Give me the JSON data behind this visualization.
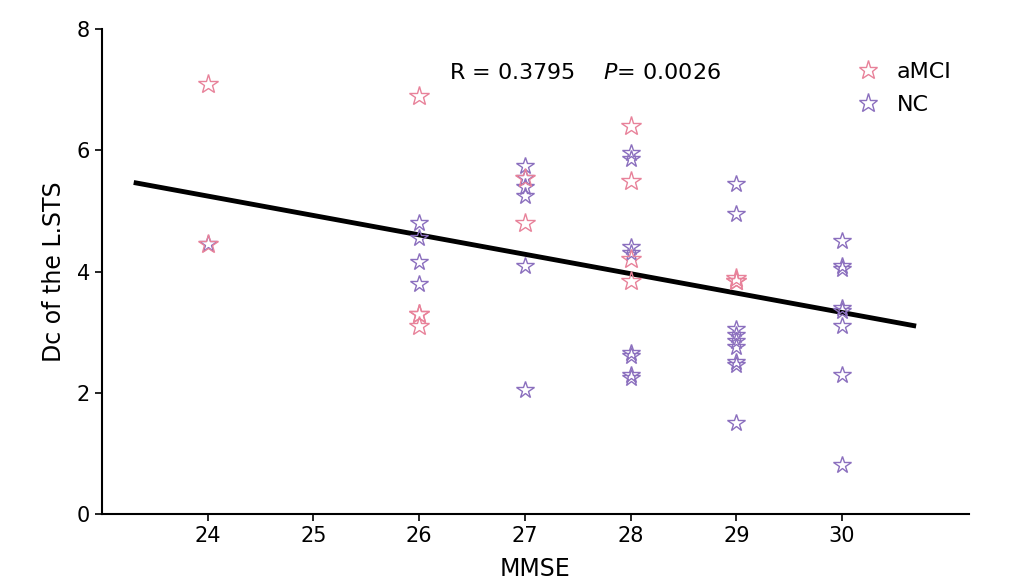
{
  "amci_x": [
    24,
    24,
    26,
    26,
    26,
    26,
    27,
    27,
    28,
    28,
    28,
    28,
    29,
    29,
    29
  ],
  "amci_y": [
    7.1,
    4.45,
    6.9,
    3.1,
    3.3,
    3.3,
    5.55,
    4.8,
    6.4,
    5.5,
    4.2,
    3.85,
    3.9,
    3.85,
    3.85
  ],
  "nc_x": [
    24,
    26,
    26,
    26,
    26,
    27,
    27,
    27,
    27,
    27,
    27,
    28,
    28,
    28,
    28,
    28,
    28,
    28,
    28,
    29,
    29,
    29,
    29,
    29,
    29,
    29,
    29,
    29,
    30,
    30,
    30,
    30,
    30,
    30,
    30,
    30
  ],
  "nc_y": [
    4.45,
    4.8,
    4.55,
    4.15,
    3.8,
    5.75,
    5.55,
    5.4,
    5.25,
    4.1,
    2.05,
    5.95,
    5.85,
    4.4,
    4.3,
    2.65,
    2.6,
    2.3,
    2.25,
    5.45,
    4.95,
    3.05,
    2.95,
    2.85,
    2.75,
    2.5,
    2.45,
    1.5,
    4.5,
    4.1,
    4.05,
    3.4,
    3.35,
    3.1,
    2.3,
    0.8
  ],
  "line_x": [
    23.3,
    30.7
  ],
  "line_y": [
    5.47,
    3.1
  ],
  "amci_color": "#e8829a",
  "nc_color": "#8B6FBE",
  "line_color": "#000000",
  "xlabel": "MMSE",
  "ylabel": "Dc of the L.STS",
  "xlim": [
    23.0,
    31.2
  ],
  "ylim": [
    0,
    8
  ],
  "xticks": [
    24,
    25,
    26,
    27,
    28,
    29,
    30
  ],
  "yticks": [
    0,
    2,
    4,
    6,
    8
  ],
  "legend_amci": "aMCI",
  "legend_nc": "NC",
  "figsize": [
    10.2,
    5.84
  ],
  "dpi": 100
}
